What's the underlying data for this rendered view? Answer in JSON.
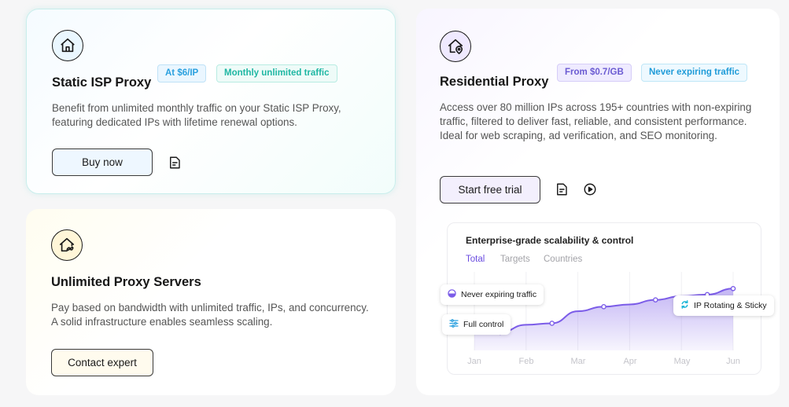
{
  "isp": {
    "icon": "home-icon",
    "title": "Static ISP Proxy",
    "tags": [
      "At $6/IP",
      "Monthly unlimited traffic"
    ],
    "description": "Benefit from unlimited monthly traffic on your Static ISP Proxy, featuring dedicated IPs with lifetime renewal options.",
    "button": "Buy now",
    "doc_icon": "document-icon"
  },
  "unlimited": {
    "icon": "home-unlimited-icon",
    "title": "Unlimited Proxy Servers",
    "description": "Pay based on bandwidth with unlimited traffic, IPs, and concurrency. A solid infrastructure enables seamless scaling.",
    "button": "Contact expert"
  },
  "residential": {
    "icon": "home-location-icon",
    "title": "Residential Proxy",
    "tags": [
      "From $0.7/GB",
      "Never expiring traffic"
    ],
    "description": "Access over 80 million IPs across 195+ countries with non-expiring traffic, filtered to deliver fast, reliable, and consistent performance. Ideal for web scraping, ad verification, and SEO monitoring.",
    "button": "Start free trial",
    "doc_icon": "document-icon",
    "play_icon": "play-icon"
  },
  "chart": {
    "title": "Enterprise-grade scalability & control",
    "tabs": [
      "Total",
      "Targets",
      "Countries"
    ],
    "active_tab": "Total",
    "pills": [
      "Never expiring traffic",
      "Full control",
      "IP Rotating & Sticky"
    ],
    "accent": "#7b5ce8"
  },
  "chart_data": {
    "type": "area",
    "title": "Enterprise-grade scalability & control",
    "categories": [
      "Jan",
      "Feb",
      "Mar",
      "Apr",
      "May",
      "Jun"
    ],
    "x": [
      0,
      0.5,
      1,
      1.5,
      2,
      2.5,
      3,
      3.5,
      4,
      4.5,
      5
    ],
    "series": [
      {
        "values": [
          28,
          24,
          34,
          36,
          52,
          58,
          61,
          67,
          72,
          74,
          82
        ]
      }
    ],
    "ylim": [
      0,
      100
    ],
    "grid": "vertical",
    "legend": "none"
  }
}
